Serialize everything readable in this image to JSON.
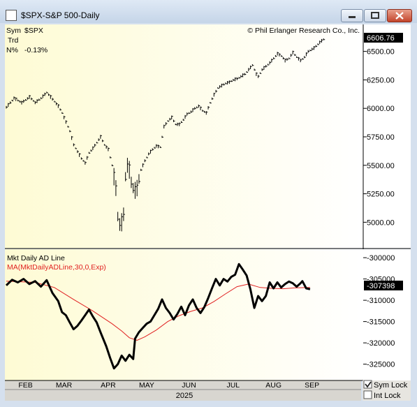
{
  "window": {
    "title": "$SPX-S&P 500-Daily"
  },
  "chart_data": [
    {
      "type": "line",
      "name": "price-panel",
      "info": {
        "sym_label": "Sym",
        "sym_value": "$SPX",
        "trd_label": "Trd",
        "n_label": "N%",
        "n_value": "-0.13%"
      },
      "copyright": "© Phil Erlanger Research Co., Inc.",
      "last_value_label": "6606.76",
      "yticks": [
        "6500.00",
        "6250.00",
        "6000.00",
        "5750.00",
        "5500.00",
        "5250.00",
        "5000.00"
      ],
      "ylim": [
        4800,
        6700
      ],
      "xlim": [
        0,
        182
      ],
      "points": [
        [
          0,
          6010
        ],
        [
          4,
          6090
        ],
        [
          8,
          6050
        ],
        [
          12,
          6100
        ],
        [
          15,
          6050
        ],
        [
          18,
          6090
        ],
        [
          21,
          6140
        ],
        [
          24,
          6080
        ],
        [
          27,
          6020
        ],
        [
          29,
          5960
        ],
        [
          31,
          5880
        ],
        [
          33,
          5800
        ],
        [
          35,
          5680
        ],
        [
          37,
          5620
        ],
        [
          39,
          5560
        ],
        [
          41,
          5520
        ],
        [
          43,
          5610
        ],
        [
          45,
          5650
        ],
        [
          47,
          5700
        ],
        [
          49,
          5750
        ],
        [
          51,
          5680
        ],
        [
          53,
          5640
        ],
        [
          55,
          5500
        ],
        [
          57,
          5300
        ],
        [
          58,
          5050
        ],
        [
          59,
          4980
        ],
        [
          60,
          5000
        ],
        [
          61,
          5070
        ],
        [
          62,
          5400
        ],
        [
          63,
          5500
        ],
        [
          64,
          5460
        ],
        [
          65,
          5350
        ],
        [
          66,
          5300
        ],
        [
          67,
          5280
        ],
        [
          68,
          5300
        ],
        [
          69,
          5380
        ],
        [
          70,
          5460
        ],
        [
          72,
          5540
        ],
        [
          74,
          5600
        ],
        [
          76,
          5640
        ],
        [
          78,
          5670
        ],
        [
          80,
          5660
        ],
        [
          82,
          5840
        ],
        [
          84,
          5890
        ],
        [
          86,
          5920
        ],
        [
          88,
          5860
        ],
        [
          90,
          5860
        ],
        [
          92,
          5900
        ],
        [
          94,
          5950
        ],
        [
          96,
          5970
        ],
        [
          98,
          6000
        ],
        [
          100,
          6020
        ],
        [
          102,
          5980
        ],
        [
          104,
          5960
        ],
        [
          106,
          6050
        ],
        [
          108,
          6120
        ],
        [
          110,
          6180
        ],
        [
          112,
          6200
        ],
        [
          114,
          6220
        ],
        [
          116,
          6230
        ],
        [
          118,
          6250
        ],
        [
          120,
          6260
        ],
        [
          122,
          6280
        ],
        [
          124,
          6300
        ],
        [
          126,
          6340
        ],
        [
          128,
          6380
        ],
        [
          130,
          6300
        ],
        [
          131,
          6280
        ],
        [
          133,
          6340
        ],
        [
          135,
          6370
        ],
        [
          137,
          6400
        ],
        [
          139,
          6440
        ],
        [
          141,
          6480
        ],
        [
          143,
          6460
        ],
        [
          145,
          6420
        ],
        [
          147,
          6440
        ],
        [
          149,
          6490
        ],
        [
          151,
          6450
        ],
        [
          153,
          6420
        ],
        [
          155,
          6450
        ],
        [
          157,
          6500
        ],
        [
          160,
          6530
        ],
        [
          163,
          6580
        ],
        [
          165,
          6606.76
        ]
      ]
    },
    {
      "type": "line",
      "name": "indicator-panel",
      "title": "Mkt Daily AD Line",
      "series": [
        {
          "name": "Mkt Daily AD Line",
          "values": []
        },
        {
          "name": "MA(MktDailyADLine,30,0,Exp)",
          "values": []
        }
      ],
      "line_points": [
        [
          0,
          -306500
        ],
        [
          3,
          -305200
        ],
        [
          6,
          -305800
        ],
        [
          9,
          -305000
        ],
        [
          12,
          -306200
        ],
        [
          15,
          -305500
        ],
        [
          18,
          -306800
        ],
        [
          21,
          -305300
        ],
        [
          24,
          -308300
        ],
        [
          27,
          -310200
        ],
        [
          29,
          -312800
        ],
        [
          31,
          -313500
        ],
        [
          33,
          -315200
        ],
        [
          35,
          -316800
        ],
        [
          37,
          -316000
        ],
        [
          39,
          -314800
        ],
        [
          41,
          -313500
        ],
        [
          43,
          -312200
        ],
        [
          45,
          -313800
        ],
        [
          47,
          -315200
        ],
        [
          49,
          -317500
        ],
        [
          52,
          -320800
        ],
        [
          54,
          -323500
        ],
        [
          56,
          -326000
        ],
        [
          58,
          -325000
        ],
        [
          60,
          -323000
        ],
        [
          62,
          -324200
        ],
        [
          64,
          -322800
        ],
        [
          66,
          -323800
        ],
        [
          67,
          -319000
        ],
        [
          69,
          -317500
        ],
        [
          71,
          -316500
        ],
        [
          73,
          -315500
        ],
        [
          75,
          -315000
        ],
        [
          77,
          -313500
        ],
        [
          79,
          -312000
        ],
        [
          81,
          -309800
        ],
        [
          83,
          -311800
        ],
        [
          85,
          -313000
        ],
        [
          87,
          -314500
        ],
        [
          89,
          -313200
        ],
        [
          91,
          -311500
        ],
        [
          93,
          -313500
        ],
        [
          95,
          -311200
        ],
        [
          97,
          -309800
        ],
        [
          99,
          -311800
        ],
        [
          101,
          -313000
        ],
        [
          103,
          -311600
        ],
        [
          105,
          -309500
        ],
        [
          107,
          -307200
        ],
        [
          109,
          -305000
        ],
        [
          111,
          -306500
        ],
        [
          113,
          -305000
        ],
        [
          115,
          -305600
        ],
        [
          117,
          -304500
        ],
        [
          119,
          -304000
        ],
        [
          121,
          -301500
        ],
        [
          123,
          -302800
        ],
        [
          125,
          -304200
        ],
        [
          127,
          -307500
        ],
        [
          129,
          -311800
        ],
        [
          131,
          -309000
        ],
        [
          133,
          -310200
        ],
        [
          135,
          -309000
        ],
        [
          137,
          -305800
        ],
        [
          139,
          -307200
        ],
        [
          141,
          -305800
        ],
        [
          143,
          -307000
        ],
        [
          145,
          -306200
        ],
        [
          147,
          -305600
        ],
        [
          149,
          -306000
        ],
        [
          151,
          -306800
        ],
        [
          153,
          -306000
        ],
        [
          154,
          -305500
        ],
        [
          156,
          -307200
        ],
        [
          158,
          -307400
        ]
      ],
      "ma_points": [
        [
          0,
          -305500
        ],
        [
          15,
          -305800
        ],
        [
          25,
          -307000
        ],
        [
          35,
          -309800
        ],
        [
          45,
          -312500
        ],
        [
          55,
          -315500
        ],
        [
          60,
          -317200
        ],
        [
          64,
          -318800
        ],
        [
          68,
          -319400
        ],
        [
          72,
          -318600
        ],
        [
          78,
          -317000
        ],
        [
          84,
          -315000
        ],
        [
          90,
          -313600
        ],
        [
          96,
          -312600
        ],
        [
          102,
          -311800
        ],
        [
          108,
          -310300
        ],
        [
          114,
          -308500
        ],
        [
          120,
          -306800
        ],
        [
          126,
          -306200
        ],
        [
          132,
          -307000
        ],
        [
          138,
          -307200
        ],
        [
          144,
          -307300
        ],
        [
          150,
          -307100
        ],
        [
          158,
          -307000
        ]
      ],
      "last_value_label": "-307398",
      "yticks": [
        "-300000",
        "-305000",
        "-310000",
        "-315000",
        "-320000",
        "-325000"
      ],
      "ylim": [
        -328500,
        -299000
      ],
      "xlim": [
        0,
        182
      ],
      "month_labels": [
        "FEB",
        "MAR",
        "APR",
        "MAY",
        "JUN",
        "JUL",
        "AUG",
        "SEP"
      ],
      "month_positions": [
        10,
        30,
        53,
        73,
        95,
        118,
        139,
        159
      ],
      "year_label": "2025"
    }
  ],
  "controls": {
    "sym_lock": "Sym Lock",
    "int_lock": "Int Lock",
    "sym_lock_checked": true,
    "int_lock_checked": false
  },
  "colors": {
    "price_bg_left": "#fefbd4",
    "price_bg_right": "#ffffff",
    "ad_line": "#000000",
    "ma_line": "#e02020",
    "label_bg": "#000000"
  }
}
